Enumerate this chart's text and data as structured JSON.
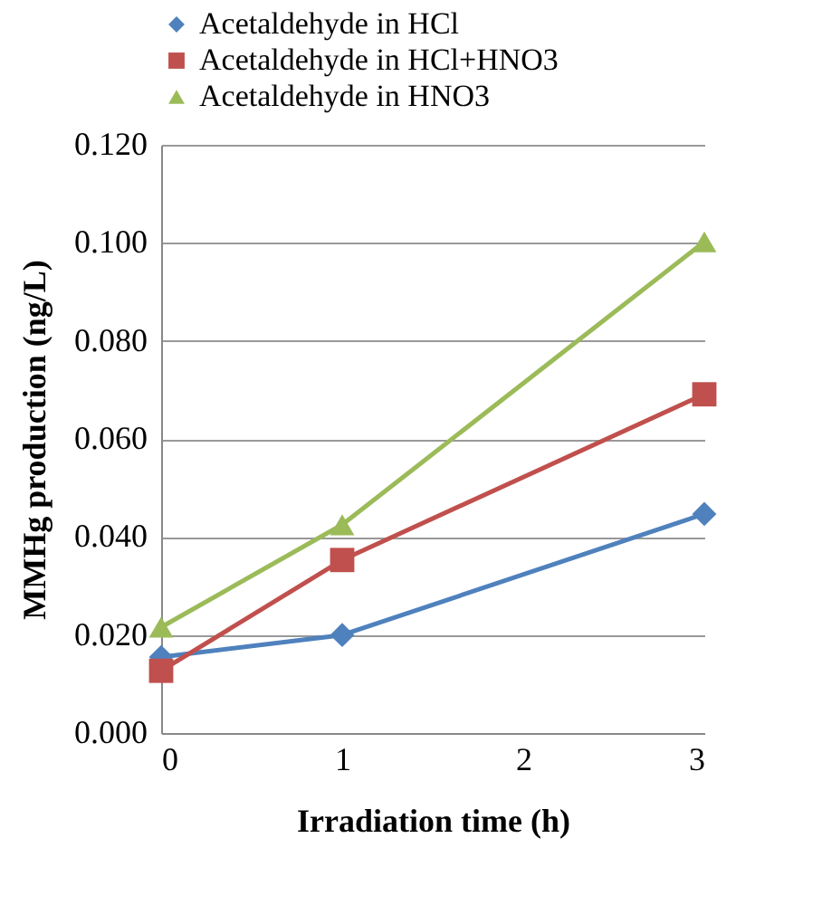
{
  "chart_data": {
    "type": "line",
    "xlabel": "Irradiation time (h)",
    "ylabel": "MMHg production (ng/L)",
    "x": [
      0,
      1,
      3
    ],
    "xlim": [
      0,
      3
    ],
    "xticks": [
      0,
      1,
      2,
      3
    ],
    "ylim": [
      0,
      0.12
    ],
    "yticks": [
      {
        "value": 0,
        "label": "0.000"
      },
      {
        "value": 0.02,
        "label": "0.020"
      },
      {
        "value": 0.04,
        "label": "0.040"
      },
      {
        "value": 0.06,
        "label": "0.060"
      },
      {
        "value": 0.08,
        "label": "0.080"
      },
      {
        "value": 0.1,
        "label": "0.100"
      },
      {
        "value": 0.12,
        "label": "0.120"
      }
    ],
    "grid": "y",
    "legend": "top",
    "line_style": "solid",
    "series": [
      {
        "name": "Acetaldehyde in HCl",
        "color": "#4f81bd",
        "marker": "diamond",
        "values": [
          0.0155,
          0.02,
          0.0447
        ]
      },
      {
        "name": "Acetaldehyde in HCl+HNO3",
        "color": "#c0504d",
        "marker": "square",
        "values": [
          0.0127,
          0.0353,
          0.0691
        ]
      },
      {
        "name": "Acetaldehyde in HNO3",
        "color": "#9bbb59",
        "marker": "triangle",
        "values": [
          0.0216,
          0.0425,
          0.1002
        ]
      }
    ]
  }
}
